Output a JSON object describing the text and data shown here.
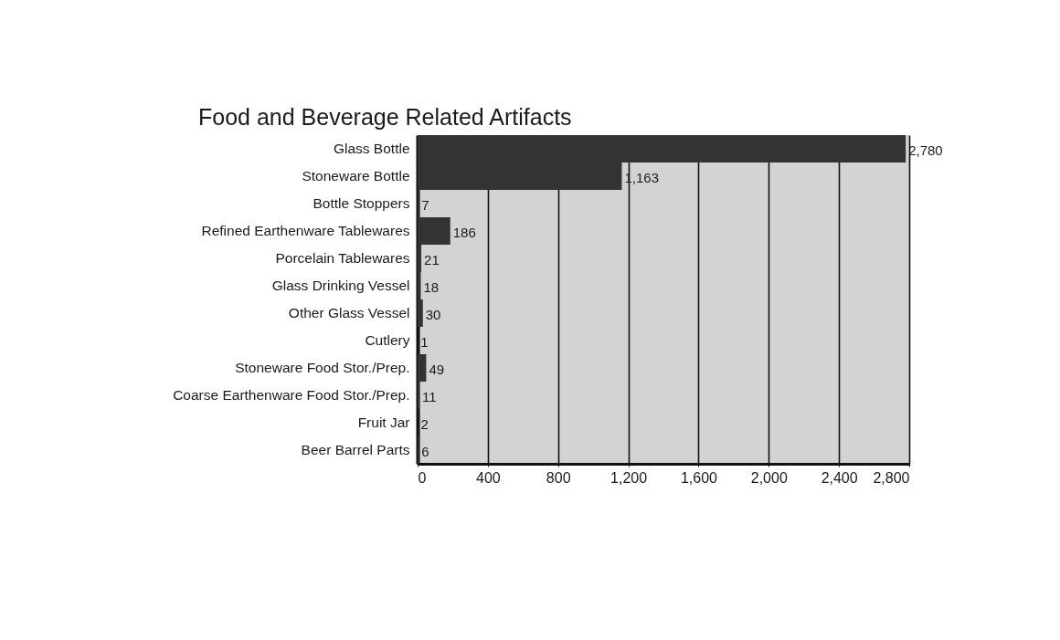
{
  "chart_data": {
    "type": "bar",
    "orientation": "horizontal",
    "title": "Food and Beverage Related Artifacts",
    "categories": [
      "Glass Bottle",
      "Stoneware Bottle",
      "Bottle Stoppers",
      "Refined Earthenware Tablewares",
      "Porcelain Tablewares",
      "Glass Drinking Vessel",
      "Other Glass Vessel",
      "Cutlery",
      "Stoneware Food Stor./Prep.",
      "Coarse Earthenware Food Stor./Prep.",
      "Fruit Jar",
      "Beer Barrel Parts"
    ],
    "values": [
      2780,
      1163,
      7,
      186,
      21,
      18,
      30,
      1,
      49,
      11,
      2,
      6
    ],
    "value_labels": [
      "2,780",
      "1,163",
      "7",
      "186",
      "21",
      "18",
      "30",
      "1",
      "49",
      "11",
      "2",
      "6"
    ],
    "color": "#333333",
    "xlim": [
      0,
      2800
    ],
    "xticks": [
      0,
      400,
      800,
      {
        "value": 1200,
        "label": "1,200"
      },
      {
        "value": 1600,
        "label": "1,600"
      },
      {
        "value": 2000,
        "label": "2,000"
      },
      {
        "value": 2400,
        "label": "2,400"
      },
      {
        "value": 2800,
        "label": "2,800"
      }
    ],
    "grid": "x"
  }
}
